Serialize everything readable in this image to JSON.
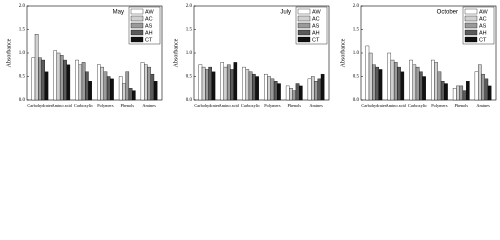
{
  "chart_data": [
    {
      "type": "bar",
      "title": "May",
      "y_label": "Absorbance",
      "categories": [
        "Carbohydrates",
        "Amino acid",
        "Carboxylic",
        "Polymers",
        "Phenols",
        "Amines"
      ],
      "ylim": [
        0,
        2
      ],
      "yticks": [
        {
          "value": 0,
          "label": "0.0"
        },
        {
          "value": 0.5,
          "label": "0.5"
        },
        {
          "value": 1,
          "label": "1.0"
        },
        {
          "value": 1.5,
          "label": "1.5"
        },
        {
          "value": 2,
          "label": "2.0"
        }
      ],
      "series": [
        {
          "name": "AW",
          "color": "#ffffff",
          "values": [
            0.9,
            1.05,
            0.85,
            0.75,
            0.5,
            0.8
          ]
        },
        {
          "name": "AC",
          "color": "#d0d0d0",
          "values": [
            1.4,
            1.0,
            0.75,
            0.7,
            0.35,
            0.75
          ]
        },
        {
          "name": "AS",
          "color": "#9a9a9a",
          "values": [
            0.9,
            0.95,
            0.8,
            0.6,
            0.6,
            0.7
          ]
        },
        {
          "name": "AH",
          "color": "#5a5a5a",
          "values": [
            0.85,
            0.85,
            0.6,
            0.5,
            0.25,
            0.55
          ]
        },
        {
          "name": "CT",
          "color": "#111111",
          "values": [
            0.6,
            0.75,
            0.4,
            0.45,
            0.2,
            0.4
          ]
        }
      ]
    },
    {
      "type": "bar",
      "title": "July",
      "y_label": "Absorbance",
      "categories": [
        "Carbohydrates",
        "Amino acid",
        "Carboxylic",
        "Polymers",
        "Phenols",
        "Amines"
      ],
      "ylim": [
        0,
        2
      ],
      "yticks": [
        {
          "value": 0,
          "label": "0.0"
        },
        {
          "value": 0.5,
          "label": "0.5"
        },
        {
          "value": 1,
          "label": "1.0"
        },
        {
          "value": 1.5,
          "label": "1.5"
        },
        {
          "value": 2,
          "label": "2.0"
        }
      ],
      "series": [
        {
          "name": "AW",
          "color": "#ffffff",
          "values": [
            0.75,
            0.8,
            0.7,
            0.55,
            0.3,
            0.45
          ]
        },
        {
          "name": "AC",
          "color": "#d0d0d0",
          "values": [
            0.7,
            0.7,
            0.65,
            0.5,
            0.25,
            0.5
          ]
        },
        {
          "name": "AS",
          "color": "#9a9a9a",
          "values": [
            0.65,
            0.75,
            0.6,
            0.45,
            0.2,
            0.4
          ]
        },
        {
          "name": "AH",
          "color": "#5a5a5a",
          "values": [
            0.7,
            0.65,
            0.55,
            0.4,
            0.35,
            0.45
          ]
        },
        {
          "name": "CT",
          "color": "#111111",
          "values": [
            0.6,
            0.8,
            0.5,
            0.35,
            0.3,
            0.55
          ]
        }
      ]
    },
    {
      "type": "bar",
      "title": "October",
      "y_label": "Absorbance",
      "categories": [
        "Carbohydrates",
        "Amino acid",
        "Carboxylic",
        "Polymers",
        "Phenols",
        "Amines"
      ],
      "ylim": [
        0,
        2
      ],
      "yticks": [
        {
          "value": 0,
          "label": "0.0"
        },
        {
          "value": 0.5,
          "label": "0.5"
        },
        {
          "value": 1,
          "label": "1.0"
        },
        {
          "value": 1.5,
          "label": "1.5"
        },
        {
          "value": 2,
          "label": "2.0"
        }
      ],
      "series": [
        {
          "name": "AW",
          "color": "#ffffff",
          "values": [
            1.15,
            1.0,
            0.85,
            0.85,
            0.25,
            0.6
          ]
        },
        {
          "name": "AC",
          "color": "#d0d0d0",
          "values": [
            1.0,
            0.85,
            0.75,
            0.8,
            0.3,
            0.75
          ]
        },
        {
          "name": "AS",
          "color": "#9a9a9a",
          "values": [
            0.75,
            0.8,
            0.7,
            0.6,
            0.3,
            0.55
          ]
        },
        {
          "name": "AH",
          "color": "#5a5a5a",
          "values": [
            0.7,
            0.7,
            0.6,
            0.4,
            0.2,
            0.45
          ]
        },
        {
          "name": "CT",
          "color": "#111111",
          "values": [
            0.65,
            0.6,
            0.5,
            0.35,
            0.4,
            0.3
          ]
        }
      ]
    }
  ]
}
